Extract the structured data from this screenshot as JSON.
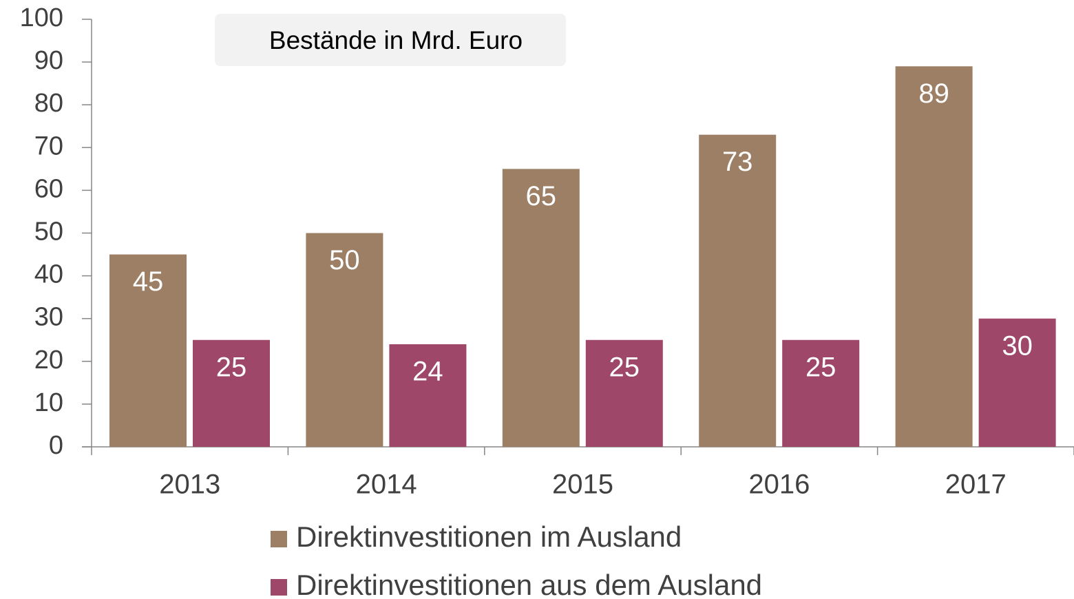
{
  "chart_data": {
    "type": "bar",
    "annotation": "Bestände in Mrd. Euro",
    "categories": [
      "2013",
      "2014",
      "2015",
      "2016",
      "2017"
    ],
    "series": [
      {
        "name": "Direktinvestitionen im Ausland",
        "color": "#9c7f64",
        "values": [
          45,
          50,
          65,
          73,
          89
        ]
      },
      {
        "name": "Direktinvestitionen aus dem Ausland",
        "color": "#9e4769",
        "values": [
          25,
          24,
          25,
          25,
          30
        ]
      }
    ],
    "ylim": [
      0,
      100
    ],
    "yticks": [
      0,
      10,
      20,
      30,
      40,
      50,
      60,
      70,
      80,
      90,
      100
    ]
  }
}
